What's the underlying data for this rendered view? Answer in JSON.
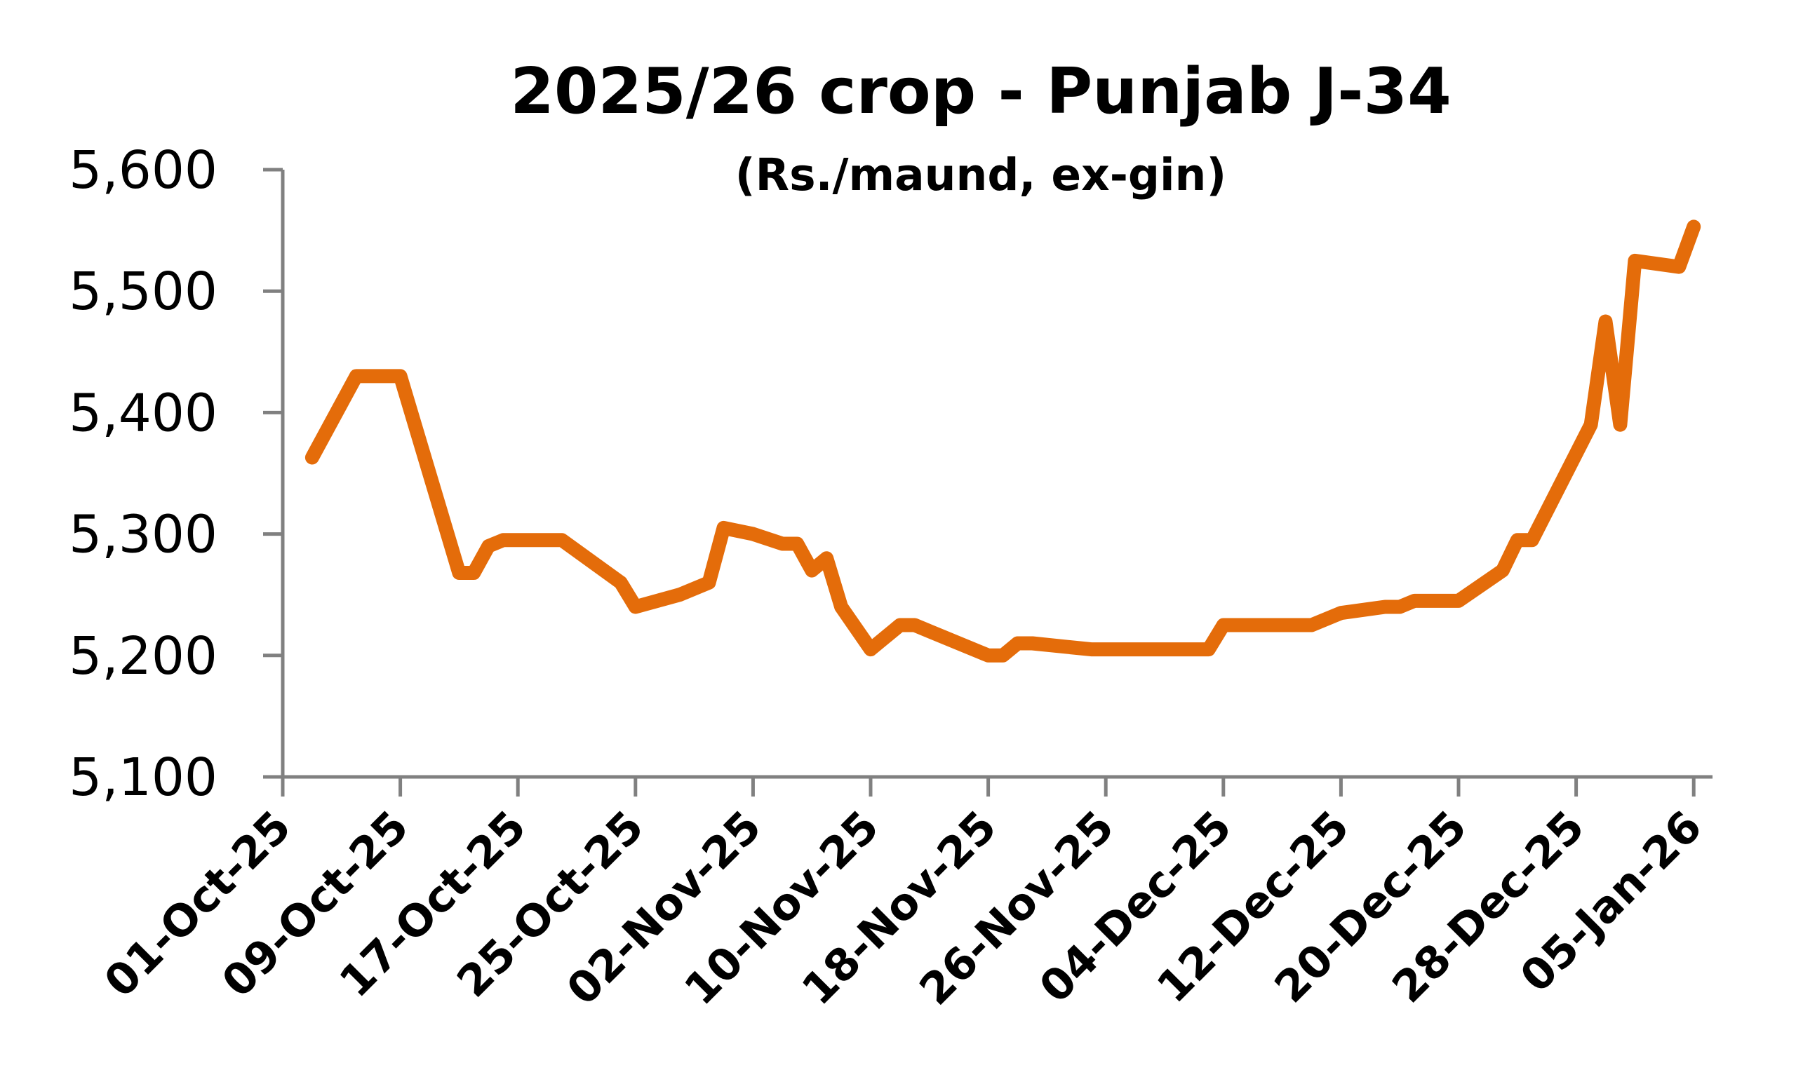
{
  "chart_data": {
    "type": "line",
    "title": "2025/26 crop - Punjab J-34",
    "subtitle": "(Rs./maund, ex-gin)",
    "xlabel": "",
    "ylabel": "",
    "ylim": [
      5100,
      5600
    ],
    "xlim": [
      "2025-10-01",
      "2026-01-06"
    ],
    "y_ticks": [
      5100,
      5200,
      5300,
      5400,
      5500,
      5600
    ],
    "y_tick_labels": [
      "5,100",
      "5,200",
      "5,300",
      "5,400",
      "5,500",
      "5,600"
    ],
    "x_ticks": [
      "2025-10-01",
      "2025-10-09",
      "2025-10-17",
      "2025-10-25",
      "2025-11-02",
      "2025-11-10",
      "2025-11-18",
      "2025-11-26",
      "2025-12-04",
      "2025-12-12",
      "2025-12-20",
      "2025-12-28",
      "2026-01-05"
    ],
    "x_tick_labels": [
      "01-Oct-25",
      "09-Oct-25",
      "17-Oct-25",
      "25-Oct-25",
      "02-Nov-25",
      "10-Nov-25",
      "18-Nov-25",
      "26-Nov-25",
      "04-Dec-25",
      "12-Dec-25",
      "20-Dec-25",
      "28-Dec-25",
      "05-Jan-26"
    ],
    "grid": false,
    "legend": "none",
    "line_color": "#E46C0A",
    "axis_color": "#808080",
    "series": [
      {
        "x": [
          "2025-10-03",
          "2025-10-06",
          "2025-10-07",
          "2025-10-09",
          "2025-10-13",
          "2025-10-14",
          "2025-10-15",
          "2025-10-16",
          "2025-10-20",
          "2025-10-24",
          "2025-10-25",
          "2025-10-28",
          "2025-10-30",
          "2025-10-31",
          "2025-11-02",
          "2025-11-04",
          "2025-11-05",
          "2025-11-06",
          "2025-11-07",
          "2025-11-08",
          "2025-11-10",
          "2025-11-12",
          "2025-11-13",
          "2025-11-14",
          "2025-11-18",
          "2025-11-19",
          "2025-11-20",
          "2025-11-21",
          "2025-11-25",
          "2025-11-26",
          "2025-11-27",
          "2025-12-03",
          "2025-12-04",
          "2025-12-05",
          "2025-12-08",
          "2025-12-09",
          "2025-12-10",
          "2025-12-12",
          "2025-12-15",
          "2025-12-16",
          "2025-12-17",
          "2025-12-18",
          "2025-12-19",
          "2025-12-20",
          "2025-12-23",
          "2025-12-24",
          "2025-12-25",
          "2025-12-29",
          "2025-12-30",
          "2025-12-31",
          "2026-01-01",
          "2026-01-04",
          "2026-01-05"
        ],
        "y": [
          5363,
          5430,
          5430,
          5430,
          5268,
          5268,
          5290,
          5295,
          5295,
          5260,
          5240,
          5250,
          5260,
          5305,
          5300,
          5292,
          5292,
          5270,
          5280,
          5240,
          5205,
          5225,
          5225,
          5220,
          5200,
          5200,
          5210,
          5210,
          5205,
          5205,
          5205,
          5205,
          5225,
          5225,
          5225,
          5225,
          5225,
          5235,
          5240,
          5240,
          5245,
          5245,
          5245,
          5245,
          5270,
          5295,
          5295,
          5390,
          5475,
          5390,
          5525,
          5520,
          5553
        ]
      }
    ]
  }
}
